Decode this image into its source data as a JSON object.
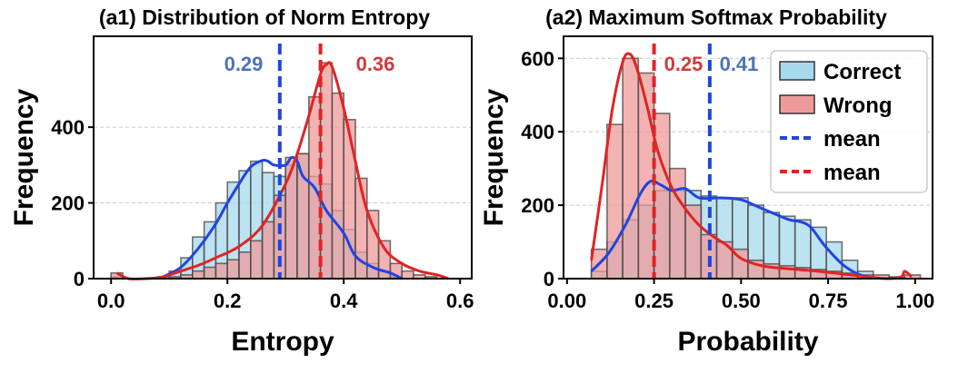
{
  "chart_data": [
    {
      "type": "bar",
      "title": "(a1) Distribution of Norm Entropy",
      "xlabel": "Entropy",
      "ylabel": "Frequency",
      "xlim": [
        -0.03,
        0.62
      ],
      "ylim": [
        0,
        640
      ],
      "xticks": [
        0.0,
        0.2,
        0.4,
        0.6
      ],
      "xtick_labels": [
        "0.0",
        "0.2",
        "0.4",
        "0.6"
      ],
      "yticks": [
        0,
        200,
        400
      ],
      "ytick_labels": [
        "0",
        "200",
        "400"
      ],
      "grid": "horizontal dashed",
      "bin_width": 0.02,
      "series": [
        {
          "name": "Correct",
          "color": "#a7d8ec",
          "bins_start": [
            0.0,
            0.02,
            0.04,
            0.06,
            0.08,
            0.1,
            0.12,
            0.14,
            0.16,
            0.18,
            0.2,
            0.22,
            0.24,
            0.26,
            0.28,
            0.3,
            0.32,
            0.34,
            0.36,
            0.38,
            0.4,
            0.42,
            0.44,
            0.46,
            0.48
          ],
          "values": [
            5,
            0,
            0,
            0,
            5,
            20,
            55,
            110,
            150,
            200,
            255,
            285,
            310,
            280,
            270,
            300,
            330,
            270,
            250,
            180,
            130,
            70,
            40,
            20,
            5
          ]
        },
        {
          "name": "Wrong",
          "color": "#ef9a9a",
          "bins_start": [
            0.0,
            0.1,
            0.12,
            0.14,
            0.16,
            0.18,
            0.2,
            0.22,
            0.24,
            0.26,
            0.28,
            0.3,
            0.32,
            0.34,
            0.36,
            0.38,
            0.4,
            0.42,
            0.44,
            0.46,
            0.48,
            0.5,
            0.52,
            0.54
          ],
          "values": [
            15,
            5,
            10,
            20,
            30,
            40,
            50,
            70,
            100,
            150,
            220,
            320,
            330,
            480,
            570,
            490,
            420,
            265,
            180,
            100,
            40,
            20,
            10,
            5
          ]
        }
      ],
      "kde": [
        {
          "series": "Correct",
          "color": "#1f45e0",
          "x": [
            0.09,
            0.12,
            0.15,
            0.18,
            0.2,
            0.22,
            0.24,
            0.26,
            0.27,
            0.28,
            0.3,
            0.31,
            0.32,
            0.33,
            0.35,
            0.37,
            0.4,
            0.42,
            0.45,
            0.48,
            0.5
          ],
          "y": [
            5,
            30,
            80,
            145,
            200,
            250,
            295,
            312,
            310,
            300,
            300,
            320,
            310,
            270,
            240,
            180,
            120,
            60,
            30,
            15,
            0
          ]
        },
        {
          "series": "Wrong",
          "color": "#e02424",
          "x": [
            0.01,
            0.03,
            0.06,
            0.09,
            0.12,
            0.15,
            0.18,
            0.22,
            0.26,
            0.3,
            0.32,
            0.34,
            0.36,
            0.37,
            0.38,
            0.4,
            0.42,
            0.44,
            0.47,
            0.5,
            0.53,
            0.56,
            0.58
          ],
          "y": [
            15,
            0,
            0,
            5,
            20,
            35,
            55,
            85,
            140,
            250,
            330,
            430,
            540,
            565,
            560,
            450,
            310,
            180,
            80,
            40,
            20,
            10,
            0
          ]
        }
      ],
      "mean_lines": [
        {
          "x": 0.29,
          "label": "0.29",
          "color": "#1f45e0",
          "label_color": "#4a73b8"
        },
        {
          "x": 0.36,
          "label": "0.36",
          "color": "#e02424",
          "label_color": "#d03a3a"
        }
      ]
    },
    {
      "type": "bar",
      "title": "(a2) Maximum Softmax Probability",
      "xlabel": "Probability",
      "ylabel": "Frequency",
      "xlim": [
        -0.01,
        1.05
      ],
      "ylim": [
        0,
        660
      ],
      "xticks": [
        0.0,
        0.25,
        0.5,
        0.75,
        1.0
      ],
      "xtick_labels": [
        "0.00",
        "0.25",
        "0.50",
        "0.75",
        "1.00"
      ],
      "yticks": [
        0,
        200,
        400,
        600
      ],
      "ytick_labels": [
        "0",
        "200",
        "400",
        "600"
      ],
      "grid": "horizontal dashed",
      "bin_width": 0.045,
      "series": [
        {
          "name": "Correct",
          "color": "#a7d8ec",
          "bins_start": [
            0.07,
            0.115,
            0.16,
            0.205,
            0.25,
            0.295,
            0.34,
            0.385,
            0.43,
            0.475,
            0.52,
            0.565,
            0.61,
            0.655,
            0.7,
            0.745,
            0.79,
            0.835
          ],
          "values": [
            20,
            100,
            160,
            200,
            240,
            240,
            240,
            225,
            220,
            220,
            200,
            180,
            170,
            160,
            140,
            100,
            50,
            20
          ]
        },
        {
          "name": "Wrong",
          "color": "#ef9a9a",
          "bins_start": [
            0.07,
            0.115,
            0.16,
            0.205,
            0.25,
            0.295,
            0.34,
            0.385,
            0.43,
            0.475,
            0.52,
            0.565,
            0.61,
            0.655,
            0.7,
            0.745,
            0.79,
            0.835,
            0.88,
            0.925,
            0.97
          ],
          "values": [
            80,
            420,
            600,
            560,
            450,
            300,
            200,
            120,
            100,
            80,
            50,
            40,
            35,
            30,
            25,
            20,
            15,
            10,
            10,
            5,
            10
          ]
        }
      ],
      "kde": [
        {
          "series": "Correct",
          "color": "#1f45e0",
          "x": [
            0.07,
            0.12,
            0.17,
            0.21,
            0.24,
            0.27,
            0.3,
            0.34,
            0.38,
            0.44,
            0.5,
            0.55,
            0.6,
            0.64,
            0.67,
            0.7,
            0.74,
            0.79,
            0.83,
            0.86
          ],
          "y": [
            20,
            70,
            150,
            230,
            265,
            255,
            240,
            245,
            220,
            220,
            215,
            195,
            175,
            160,
            155,
            140,
            90,
            40,
            15,
            5
          ]
        },
        {
          "series": "Wrong",
          "color": "#e02424",
          "x": [
            0.07,
            0.1,
            0.13,
            0.16,
            0.18,
            0.2,
            0.23,
            0.26,
            0.3,
            0.34,
            0.38,
            0.42,
            0.46,
            0.5,
            0.56,
            0.62,
            0.7,
            0.78,
            0.86,
            0.92,
            0.96,
            0.97,
            0.99
          ],
          "y": [
            50,
            250,
            460,
            590,
            612,
            575,
            470,
            350,
            250,
            190,
            145,
            115,
            90,
            55,
            35,
            28,
            22,
            14,
            5,
            0,
            5,
            20,
            5
          ]
        }
      ],
      "mean_lines": [
        {
          "x": 0.25,
          "label": "0.25",
          "color": "#e02424",
          "label_color": "#d03a3a"
        },
        {
          "x": 0.41,
          "label": "0.41",
          "color": "#1f45e0",
          "label_color": "#4a73b8"
        }
      ],
      "legend": {
        "placement": "top-right",
        "entries": [
          {
            "label": "Correct",
            "kind": "patch",
            "color": "#a7d8ec"
          },
          {
            "label": "Wrong",
            "kind": "patch",
            "color": "#ef9a9a"
          },
          {
            "label": "mean",
            "kind": "dashed-line",
            "color": "#1f45e0"
          },
          {
            "label": "mean",
            "kind": "dashed-line",
            "color": "#e02424"
          }
        ]
      }
    }
  ]
}
